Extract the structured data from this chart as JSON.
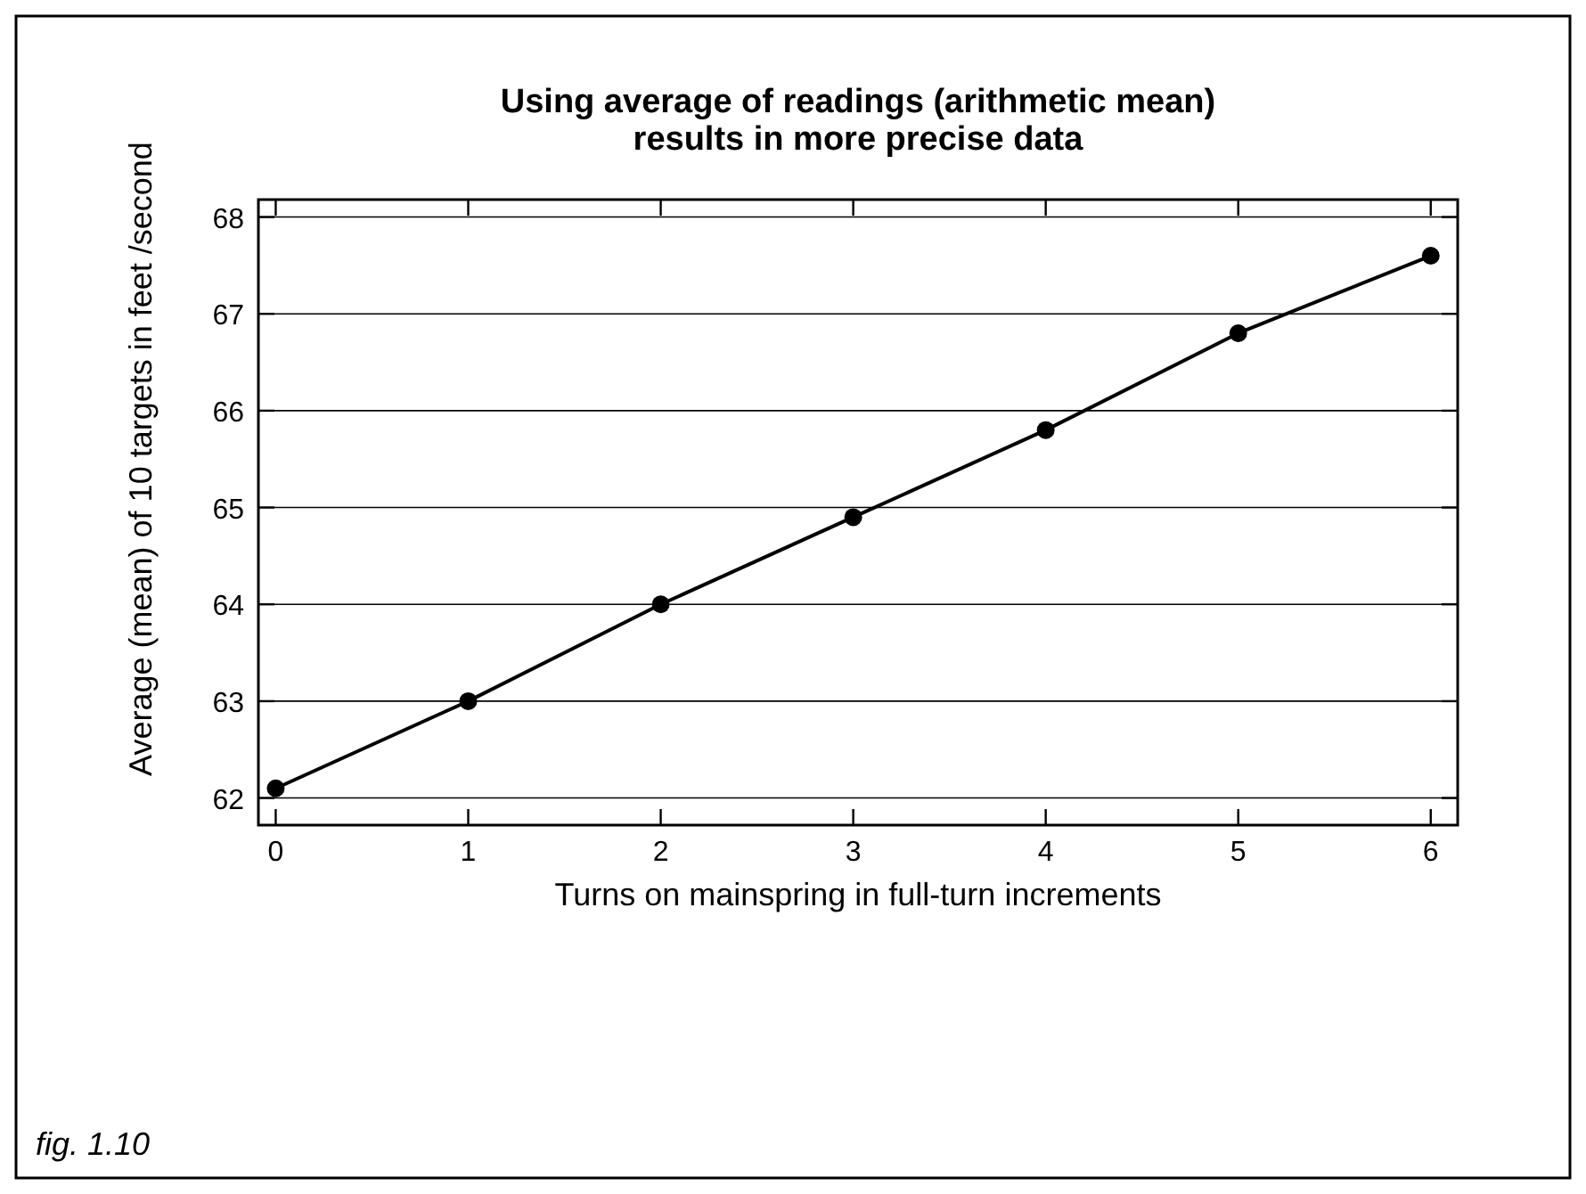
{
  "chart_data": {
    "type": "line",
    "title": "Using average of readings (arithmetic mean) results in more precise data",
    "xlabel": "Turns on mainspring in full-turn increments",
    "ylabel": "Average (mean) of 10 targets in feet /second",
    "x": [
      0,
      1,
      2,
      3,
      4,
      5,
      6
    ],
    "series": [
      {
        "color": "#000000",
        "values": [
          62.1,
          63.0,
          64.0,
          64.9,
          65.8,
          66.8,
          67.6
        ]
      }
    ],
    "xlim": [
      -0.09,
      6.14
    ],
    "xticks": [
      0,
      1,
      2,
      3,
      4,
      5,
      6
    ],
    "ylim": [
      61.72,
      68.18
    ],
    "yticks": [
      62,
      63,
      64,
      65,
      66,
      67,
      68
    ],
    "grid": "y",
    "marker": "circle",
    "line_style": "solid",
    "annotations": [
      "fig. 1.10"
    ]
  }
}
